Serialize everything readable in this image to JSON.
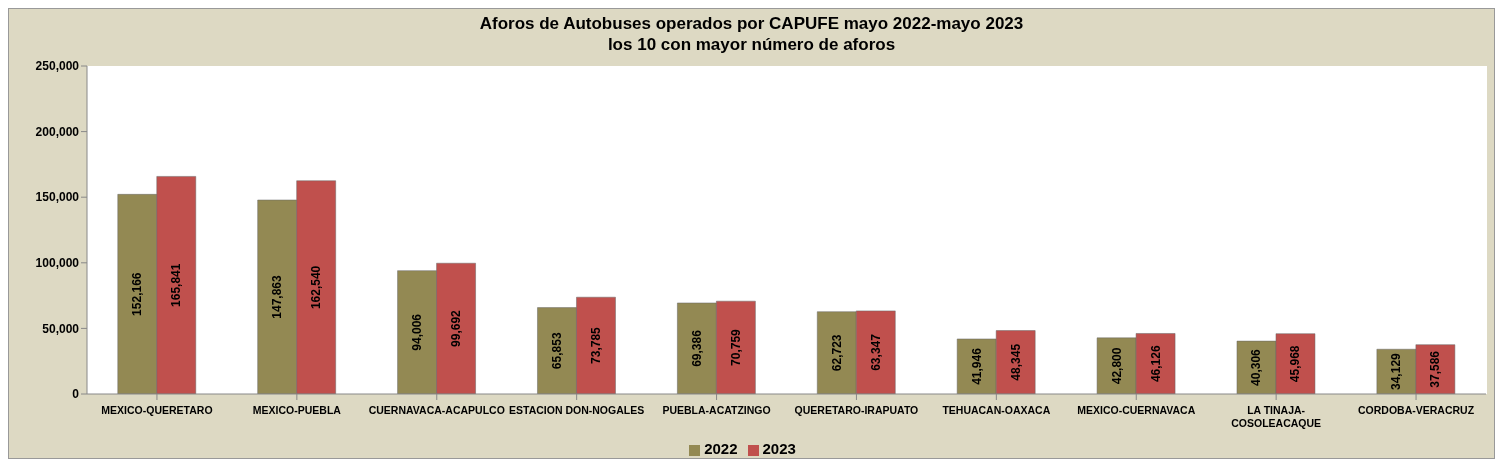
{
  "chart_data": {
    "type": "bar",
    "title": "Aforos de Autobuses operados por CAPUFE mayo 2022-mayo 2023",
    "subtitle": "los 10 con mayor número de aforos",
    "categories": [
      "MEXICO-QUERETARO",
      "MEXICO-PUEBLA",
      "CUERNAVACA-ACAPULCO",
      "ESTACION DON-NOGALES",
      "PUEBLA-ACATZINGO",
      "QUERETARO-IRAPUATO",
      "TEHUACAN-OAXACA",
      "MEXICO-CUERNAVACA",
      "LA TINAJA-COSOLEACAQUE",
      "CORDOBA-VERACRUZ"
    ],
    "series": [
      {
        "name": "2022",
        "color": "#938953",
        "values": [
          152166,
          147863,
          94006,
          65853,
          69386,
          62723,
          41946,
          42800,
          40306,
          34129
        ],
        "value_labels": [
          "152,166",
          "147,863",
          "94,006",
          "65,853",
          "69,386",
          "62,723",
          "41,946",
          "42,800",
          "40,306",
          "34,129"
        ]
      },
      {
        "name": "2023",
        "color": "#c0504d",
        "values": [
          165841,
          162540,
          99692,
          73785,
          70759,
          63347,
          48345,
          46126,
          45968,
          37586
        ],
        "value_labels": [
          "165,841",
          "162,540",
          "99,692",
          "73,785",
          "70,759",
          "63,347",
          "48,345",
          "46,126",
          "45,968",
          "37,586"
        ]
      }
    ],
    "ylim": [
      0,
      250000
    ],
    "yticks": [
      {
        "value": 0,
        "label": "0"
      },
      {
        "value": 50000,
        "label": "50,000"
      },
      {
        "value": 100000,
        "label": "100,000"
      },
      {
        "value": 150000,
        "label": "150,000"
      },
      {
        "value": 200000,
        "label": "200,000"
      },
      {
        "value": 250000,
        "label": "250,000"
      }
    ],
    "grid": false,
    "legend": "bottom"
  }
}
